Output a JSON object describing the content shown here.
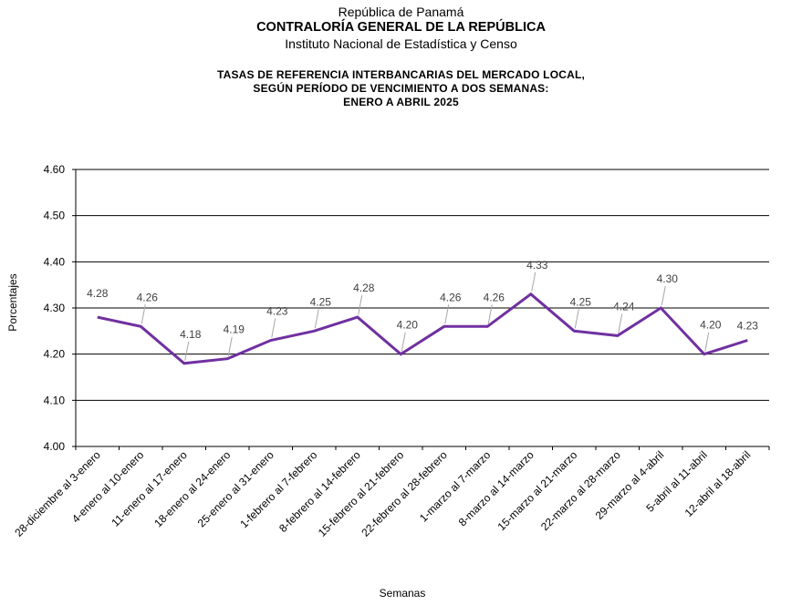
{
  "header": {
    "line1": "República de Panamá",
    "line2": "CONTRALORÍA GENERAL DE LA REPÚBLICA",
    "line3": "Instituto Nacional de Estadística y Censo"
  },
  "chart_data": {
    "type": "line",
    "title_lines": [
      "TASAS DE REFERENCIA INTERBANCARIAS DEL MERCADO LOCAL,",
      "SEGÚN PERÍODO DE VENCIMIENTO A DOS SEMANAS:",
      "ENERO  A ABRIL 2025"
    ],
    "xlabel": "Semanas",
    "ylabel": "Porcentajes",
    "ylim": [
      4.0,
      4.6
    ],
    "yticks": [
      "4.00",
      "4.10",
      "4.20",
      "4.30",
      "4.40",
      "4.50",
      "4.60"
    ],
    "grid": true,
    "categories": [
      "28-diciembre al 3-enero",
      "4-enero al 10-enero",
      "11-enero al 17-enero",
      "18-enero al 24-enero",
      "25-enero al 31-enero",
      "1-febrero al 7-febrero",
      "8-febrero al 14-febrero",
      "15-febrero al 21-febrero",
      "22-febrero al 28-febrero",
      "1-marzo al 7-marzo",
      "8-marzo al 14-marzo",
      "15-marzo al 21-marzo",
      "22-marzo al 28-marzo",
      "29-marzo al 4-abril",
      "5-abril al 11-abril",
      "12-abril al 18-abril"
    ],
    "values": [
      4.28,
      4.26,
      4.18,
      4.19,
      4.23,
      4.25,
      4.28,
      4.2,
      4.26,
      4.26,
      4.33,
      4.25,
      4.24,
      4.3,
      4.2,
      4.23
    ],
    "labels": [
      "4.28",
      "4.26",
      "4.18",
      "4.19",
      "4.23",
      "4.25",
      "4.28",
      "4.20",
      "4.26",
      "4.26",
      "4.33",
      "4.25",
      "4.24",
      "4.30",
      "4.20",
      "4.23"
    ],
    "line_color": "#7030a0"
  }
}
